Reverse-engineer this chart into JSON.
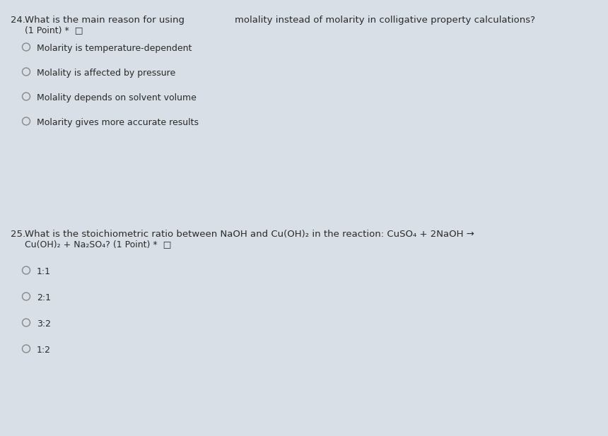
{
  "bg_color": "#d8dfe6",
  "text_color": "#2a2a2a",
  "q24_number": "24.",
  "q24_line1_normal": "What is the main reason for using ",
  "q24_line1_bold": "molality instead of molarity in colligative property calculations?",
  "q24_line2": "(1 Point) *  □",
  "q24_options": [
    "Molarity is temperature-dependent",
    "Molality is affected by pressure",
    "Molality depends on solvent volume",
    "Molarity gives more accurate results"
  ],
  "q25_number": "25.",
  "q25_line1_segments": [
    [
      "What is the stoichiometric ratio between ",
      false
    ],
    [
      "NaOH",
      false
    ],
    [
      " and ",
      false
    ],
    [
      "Cu(OH)₂",
      false
    ],
    [
      " in the reaction: ",
      false
    ],
    [
      "CuSO₄",
      false
    ],
    [
      " + 2NaOH →",
      false
    ]
  ],
  "q25_line2_segments": [
    [
      "Cu(OH)₂",
      false
    ],
    [
      " + Na₂SO₄? (1 Point) *  □",
      false
    ]
  ],
  "q25_options": [
    "1:1",
    "2:1",
    "3:2",
    "1:2"
  ],
  "circle_color": "#888888",
  "font_size": 9.5,
  "sub_font_size": 9.0
}
